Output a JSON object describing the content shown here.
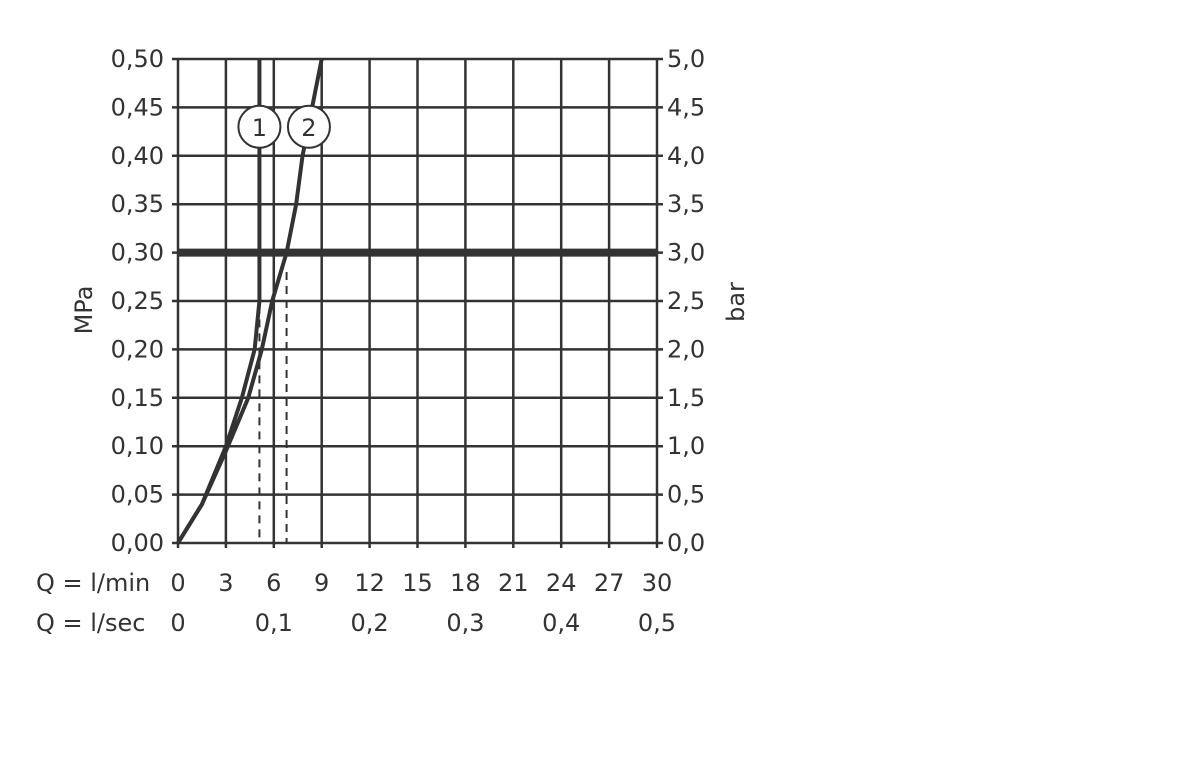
{
  "chart_data": {
    "type": "line",
    "title": "",
    "ylabel_left": "MPa",
    "ylabel_right": "bar",
    "x_row_labels": [
      "Q = l/min",
      "Q = l/sec"
    ],
    "xlim": [
      0,
      30
    ],
    "ylim": [
      0,
      0.5
    ],
    "grid": true,
    "x_ticks": [
      "0",
      "3",
      "6",
      "9",
      "12",
      "15",
      "18",
      "21",
      "24",
      "27",
      "30"
    ],
    "x_tick_values": [
      0,
      3,
      6,
      9,
      12,
      15,
      18,
      21,
      24,
      27,
      30
    ],
    "x2_ticks": [
      "0",
      "0,1",
      "0,2",
      "0,3",
      "0,4",
      "0,5"
    ],
    "x2_tick_values": [
      0,
      6,
      12,
      18,
      24,
      30
    ],
    "y_left_ticks": [
      "0,00",
      "0,05",
      "0,10",
      "0,15",
      "0,20",
      "0,25",
      "0,30",
      "0,35",
      "0,40",
      "0,45",
      "0,50"
    ],
    "y_right_ticks": [
      "0,0",
      "0,5",
      "1,0",
      "1,5",
      "2,0",
      "2,5",
      "3,0",
      "3,5",
      "4,0",
      "4,5",
      "5,0"
    ],
    "y_tick_values": [
      0,
      0.05,
      0.1,
      0.15,
      0.2,
      0.25,
      0.3,
      0.35,
      0.4,
      0.45,
      0.5
    ],
    "reference_line": {
      "y": 0.3
    },
    "series": [
      {
        "name": "1",
        "x": [
          0,
          1.5,
          3,
          4,
          4.8,
          5.1,
          5.1
        ],
        "y": [
          0,
          0.04,
          0.1,
          0.15,
          0.2,
          0.25,
          0.5
        ],
        "dashed_drop_x": 5.1,
        "dashed_drop_top": 0.26
      },
      {
        "name": "2",
        "x": [
          0,
          1.5,
          3,
          4.4,
          5.25,
          5.9,
          6.8,
          7.4,
          7.8,
          8.4,
          9.0
        ],
        "y": [
          0,
          0.04,
          0.095,
          0.15,
          0.2,
          0.25,
          0.3,
          0.35,
          0.4,
          0.45,
          0.5
        ],
        "dashed_drop_x": 6.8,
        "dashed_drop_top": 0.28
      }
    ],
    "series_label_positions": [
      {
        "x": 5.1,
        "y": 0.43
      },
      {
        "x": 8.2,
        "y": 0.43
      }
    ],
    "colors": {
      "line": "#333333",
      "grid": "#333333"
    }
  }
}
